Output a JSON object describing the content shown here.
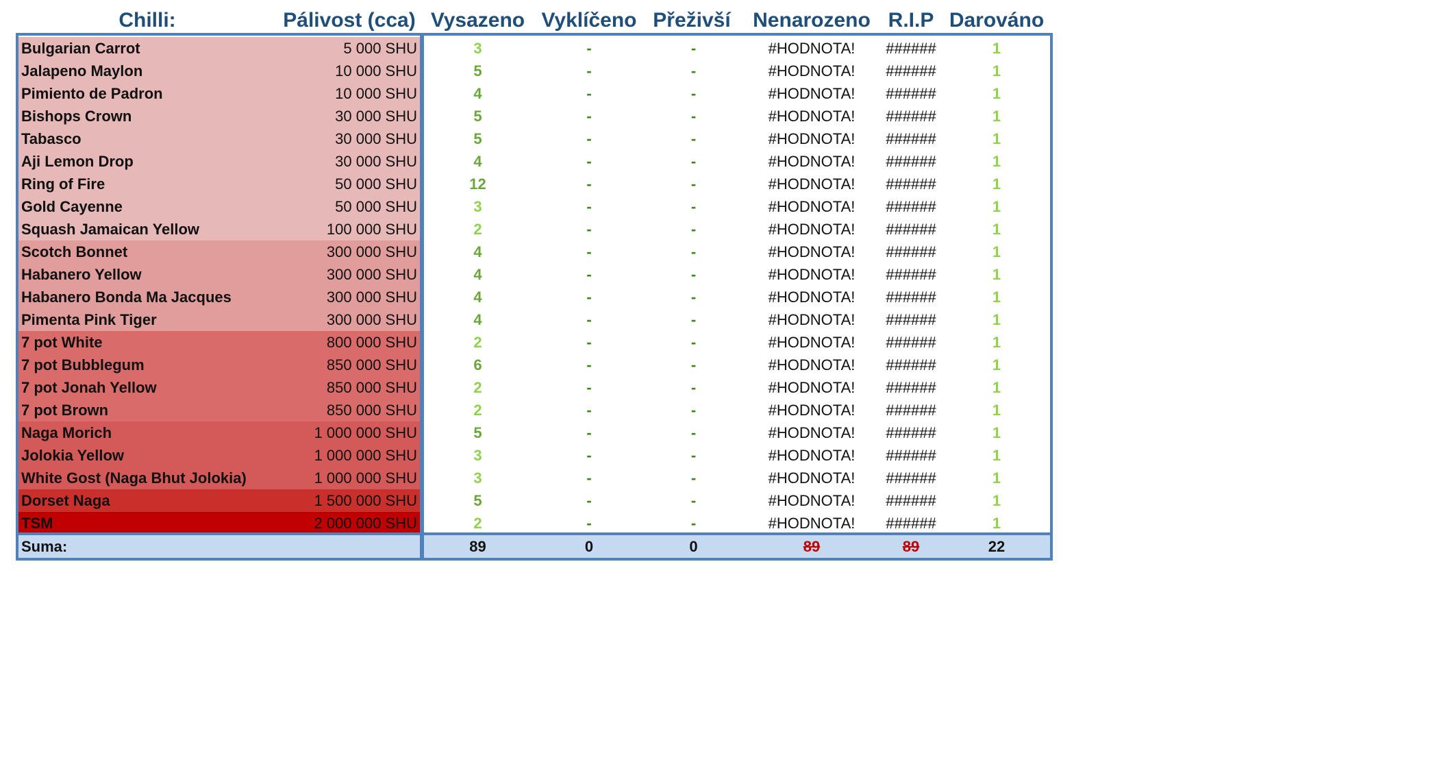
{
  "header": {
    "chilli": "Chilli:",
    "palivost": "Pálivost (cca)",
    "vysazeno": "Vysazeno",
    "vyklíčeno": "Vyklíčeno",
    "preziv": "Přeživší",
    "nenarozeno": "Nenarozeno",
    "rip": "R.I.P",
    "darovano": "Darováno"
  },
  "rows": [
    {
      "name": "Bulgarian Carrot",
      "heat": "5 000 SHU",
      "vysazeno": "3",
      "vyklíčeno": "-",
      "preziv": "-",
      "nenarozeno": "#HODNOTA!",
      "rip": "######",
      "darovano": "1",
      "bg": "#e6b8b7",
      "vcolor": "#92d050"
    },
    {
      "name": "Jalapeno Maylon",
      "heat": "10 000 SHU",
      "vysazeno": "5",
      "vyklíčeno": "-",
      "preziv": "-",
      "nenarozeno": "#HODNOTA!",
      "rip": "######",
      "darovano": "1",
      "bg": "#e6b8b7",
      "vcolor": "#6aa63c"
    },
    {
      "name": "Pimiento de Padron",
      "heat": "10 000 SHU",
      "vysazeno": "4",
      "vyklíčeno": "-",
      "preziv": "-",
      "nenarozeno": "#HODNOTA!",
      "rip": "######",
      "darovano": "1",
      "bg": "#e6b8b7",
      "vcolor": "#6aa63c"
    },
    {
      "name": "Bishops Crown",
      "heat": "30 000 SHU",
      "vysazeno": "5",
      "vyklíčeno": "-",
      "preziv": "-",
      "nenarozeno": "#HODNOTA!",
      "rip": "######",
      "darovano": "1",
      "bg": "#e6b8b7",
      "vcolor": "#6aa63c"
    },
    {
      "name": "Tabasco",
      "heat": "30 000 SHU",
      "vysazeno": "5",
      "vyklíčeno": "-",
      "preziv": "-",
      "nenarozeno": "#HODNOTA!",
      "rip": "######",
      "darovano": "1",
      "bg": "#e6b8b7",
      "vcolor": "#6aa63c"
    },
    {
      "name": "Aji Lemon Drop",
      "heat": "30 000 SHU",
      "vysazeno": "4",
      "vyklíčeno": "-",
      "preziv": "-",
      "nenarozeno": "#HODNOTA!",
      "rip": "######",
      "darovano": "1",
      "bg": "#e6b8b7",
      "vcolor": "#6aa63c"
    },
    {
      "name": "Ring of Fire",
      "heat": "50 000 SHU",
      "vysazeno": "12",
      "vyklíčeno": "-",
      "preziv": "-",
      "nenarozeno": "#HODNOTA!",
      "rip": "######",
      "darovano": "1",
      "bg": "#e6b8b7",
      "vcolor": "#6aa63c"
    },
    {
      "name": "Gold Cayenne",
      "heat": "50 000 SHU",
      "vysazeno": "3",
      "vyklíčeno": "-",
      "preziv": "-",
      "nenarozeno": "#HODNOTA!",
      "rip": "######",
      "darovano": "1",
      "bg": "#e6b8b7",
      "vcolor": "#92d050"
    },
    {
      "name": "Squash Jamaican Yellow",
      "heat": "100 000 SHU",
      "vysazeno": "2",
      "vyklíčeno": "-",
      "preziv": "-",
      "nenarozeno": "#HODNOTA!",
      "rip": "######",
      "darovano": "1",
      "bg": "#e6b8b7",
      "vcolor": "#92d050"
    },
    {
      "name": "Scotch Bonnet",
      "heat": "300 000 SHU",
      "vysazeno": "4",
      "vyklíčeno": "-",
      "preziv": "-",
      "nenarozeno": "#HODNOTA!",
      "rip": "######",
      "darovano": "1",
      "bg": "#e09d9b",
      "vcolor": "#6aa63c"
    },
    {
      "name": "Habanero Yellow",
      "heat": "300 000 SHU",
      "vysazeno": "4",
      "vyklíčeno": "-",
      "preziv": "-",
      "nenarozeno": "#HODNOTA!",
      "rip": "######",
      "darovano": "1",
      "bg": "#e09d9b",
      "vcolor": "#6aa63c"
    },
    {
      "name": "Habanero Bonda Ma Jacques",
      "heat": "300 000 SHU",
      "vysazeno": "4",
      "vyklíčeno": "-",
      "preziv": "-",
      "nenarozeno": "#HODNOTA!",
      "rip": "######",
      "darovano": "1",
      "bg": "#e09d9b",
      "vcolor": "#6aa63c"
    },
    {
      "name": "Pimenta Pink Tiger",
      "heat": "300 000 SHU",
      "vysazeno": "4",
      "vyklíčeno": "-",
      "preziv": "-",
      "nenarozeno": "#HODNOTA!",
      "rip": "######",
      "darovano": "1",
      "bg": "#e09d9b",
      "vcolor": "#6aa63c"
    },
    {
      "name": "7 pot White",
      "heat": "800 000 SHU",
      "vysazeno": "2",
      "vyklíčeno": "-",
      "preziv": "-",
      "nenarozeno": "#HODNOTA!",
      "rip": "######",
      "darovano": "1",
      "bg": "#d96c6a",
      "vcolor": "#92d050"
    },
    {
      "name": "7 pot Bubblegum",
      "heat": "850 000 SHU",
      "vysazeno": "6",
      "vyklíčeno": "-",
      "preziv": "-",
      "nenarozeno": "#HODNOTA!",
      "rip": "######",
      "darovano": "1",
      "bg": "#d96c6a",
      "vcolor": "#6aa63c"
    },
    {
      "name": "7 pot Jonah Yellow",
      "heat": "850 000 SHU",
      "vysazeno": "2",
      "vyklíčeno": "-",
      "preziv": "-",
      "nenarozeno": "#HODNOTA!",
      "rip": "######",
      "darovano": "1",
      "bg": "#d96c6a",
      "vcolor": "#92d050"
    },
    {
      "name": "7 pot Brown",
      "heat": "850 000 SHU",
      "vysazeno": "2",
      "vyklíčeno": "-",
      "preziv": "-",
      "nenarozeno": "#HODNOTA!",
      "rip": "######",
      "darovano": "1",
      "bg": "#d96c6a",
      "vcolor": "#92d050"
    },
    {
      "name": "Naga Morich",
      "heat": "1 000 000 SHU",
      "vysazeno": "5",
      "vyklíčeno": "-",
      "preziv": "-",
      "nenarozeno": "#HODNOTA!",
      "rip": "######",
      "darovano": "1",
      "bg": "#d35a58",
      "vcolor": "#6aa63c"
    },
    {
      "name": "Jolokia Yellow",
      "heat": "1 000 000 SHU",
      "vysazeno": "3",
      "vyklíčeno": "-",
      "preziv": "-",
      "nenarozeno": "#HODNOTA!",
      "rip": "######",
      "darovano": "1",
      "bg": "#d35a58",
      "vcolor": "#92d050"
    },
    {
      "name": "White Gost (Naga Bhut Jolokia)",
      "heat": "1 000 000 SHU",
      "vysazeno": "3",
      "vyklíčeno": "-",
      "preziv": "-",
      "nenarozeno": "#HODNOTA!",
      "rip": "######",
      "darovano": "1",
      "bg": "#d35a58",
      "vcolor": "#92d050"
    },
    {
      "name": "Dorset Naga",
      "heat": "1 500 000 SHU",
      "vysazeno": "5",
      "vyklíčeno": "-",
      "preziv": "-",
      "nenarozeno": "#HODNOTA!",
      "rip": "######",
      "darovano": "1",
      "bg": "#c9302c",
      "vcolor": "#6aa63c"
    },
    {
      "name": "TSM",
      "heat": "2 000 000 SHU",
      "vysazeno": "2",
      "vyklíčeno": "-",
      "preziv": "-",
      "nenarozeno": "#HODNOTA!",
      "rip": "######",
      "darovano": "1",
      "bg": "#c00000",
      "vcolor": "#92d050"
    }
  ],
  "suma": {
    "label": "Suma:",
    "vysazeno": "89",
    "vyklíčeno": "0",
    "preziv": "0",
    "nenarozeno": "89",
    "rip": "89",
    "darovano": "22"
  },
  "colors": {
    "header_text": "#1f4e79",
    "border": "#4f81bd",
    "sum_bg": "#c5d9f1",
    "dash": "#3a8a1a",
    "error_strike": "#c00000"
  }
}
